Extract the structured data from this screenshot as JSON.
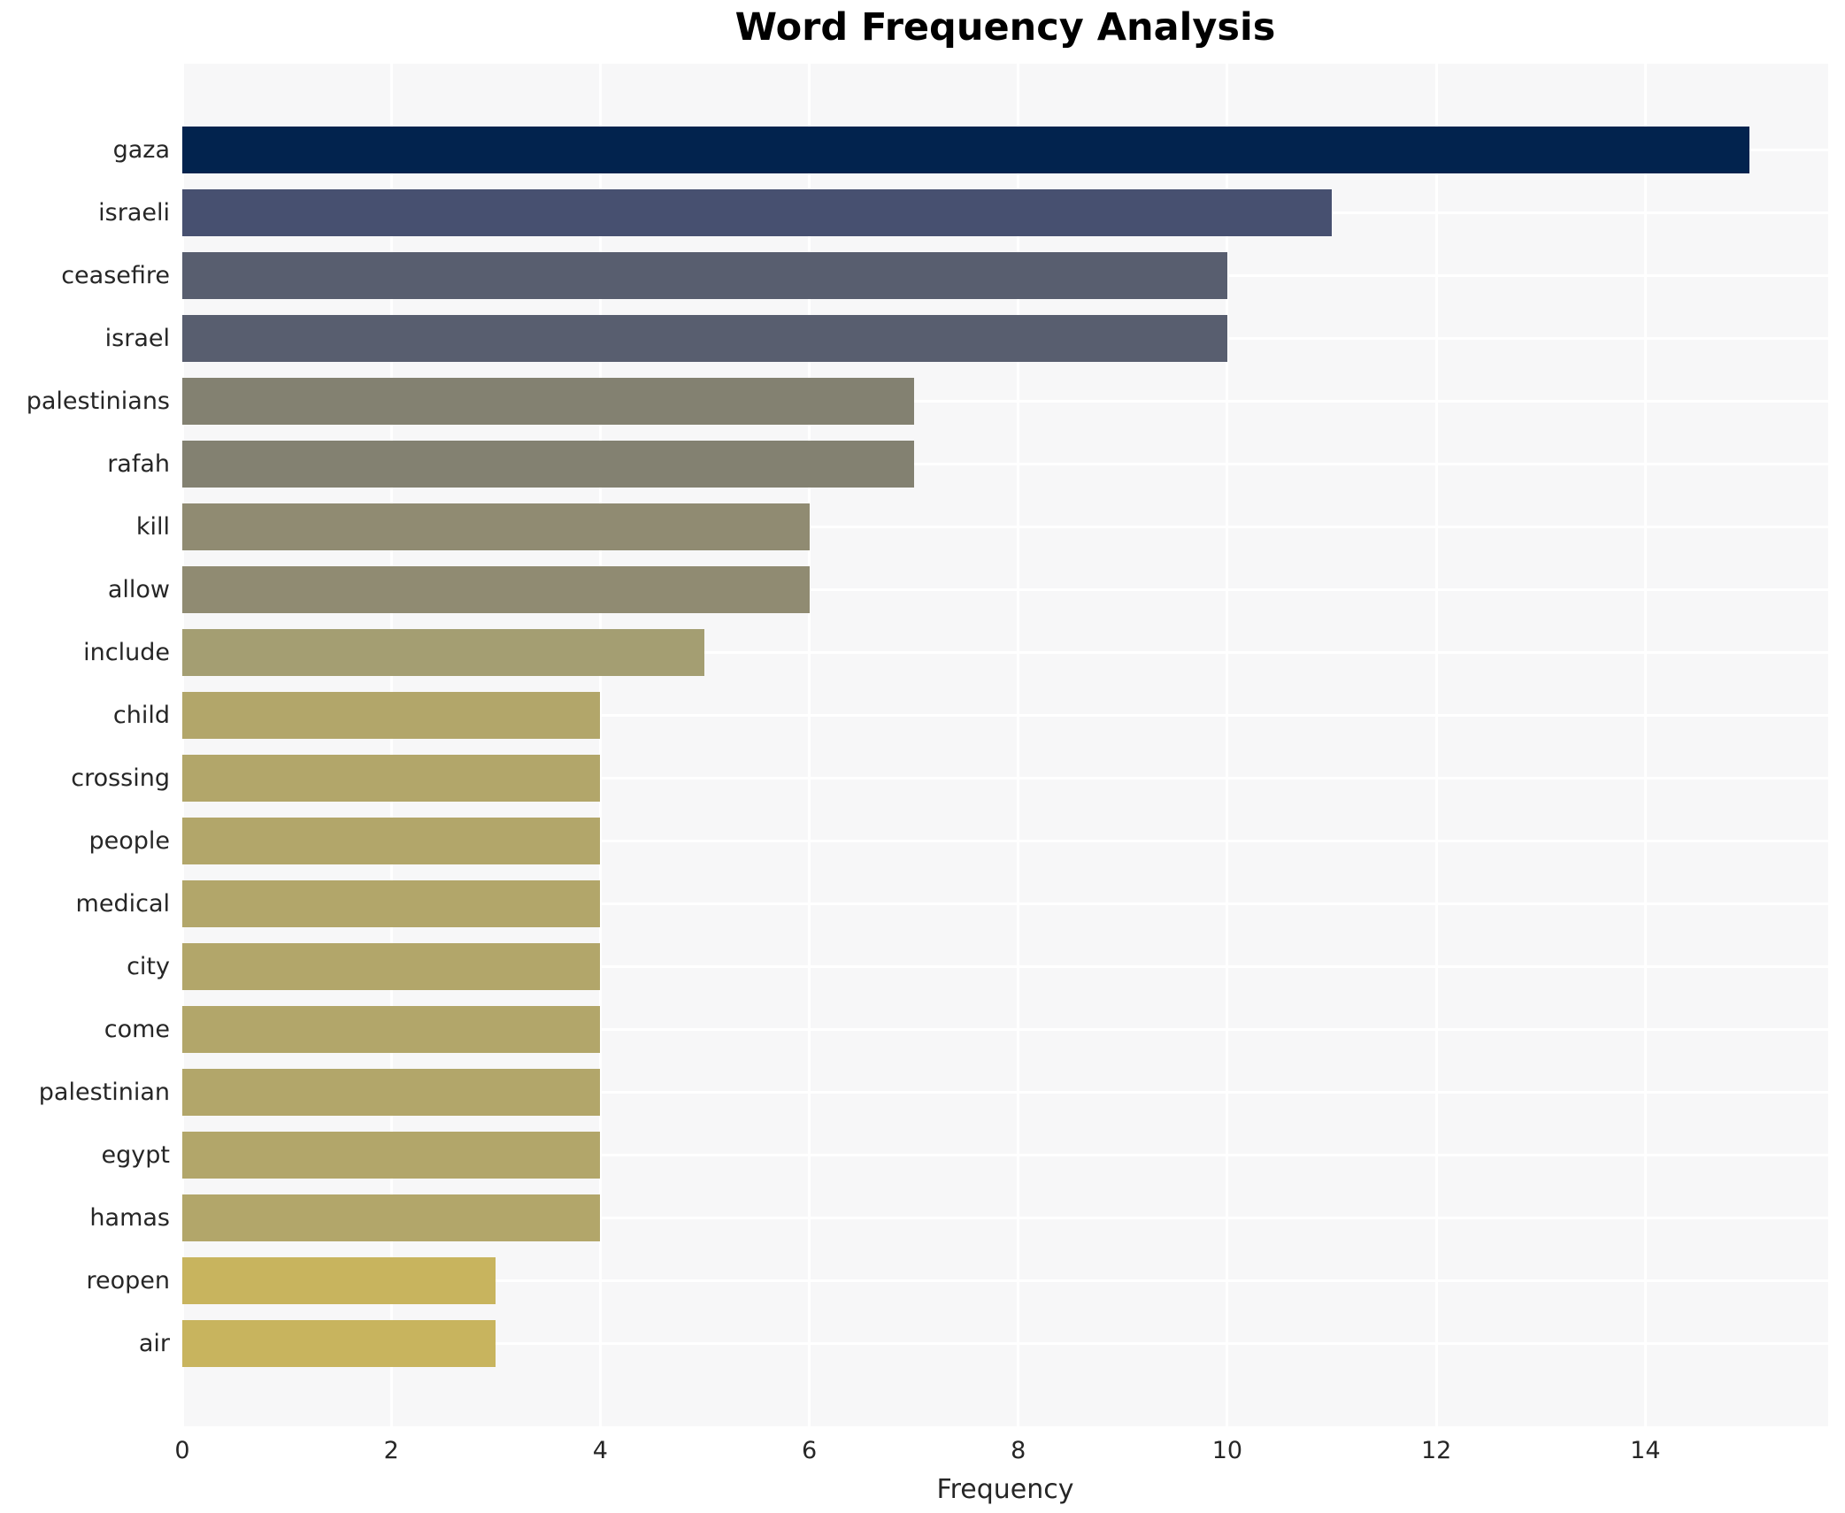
{
  "title": "Word Frequency Analysis",
  "chart_data": {
    "type": "bar",
    "orientation": "horizontal",
    "title": "Word Frequency Analysis",
    "xlabel": "Frequency",
    "ylabel": "",
    "categories": [
      "gaza",
      "israeli",
      "ceasefire",
      "israel",
      "palestinians",
      "rafah",
      "kill",
      "allow",
      "include",
      "child",
      "crossing",
      "people",
      "medical",
      "city",
      "come",
      "palestinian",
      "egypt",
      "hamas",
      "reopen",
      "air"
    ],
    "values": [
      15,
      11,
      10,
      10,
      7,
      7,
      6,
      6,
      5,
      4,
      4,
      4,
      4,
      4,
      4,
      4,
      4,
      4,
      3,
      3
    ],
    "bar_colors": [
      "#02234e",
      "#475070",
      "#585e6f",
      "#585e6f",
      "#838171",
      "#838171",
      "#908b72",
      "#908b72",
      "#a49e72",
      "#b2a66a",
      "#b2a66a",
      "#b2a66a",
      "#b2a66a",
      "#b2a66a",
      "#b2a66a",
      "#b2a66a",
      "#b2a66a",
      "#b2a66a",
      "#c8b45e",
      "#c8b45e"
    ],
    "xticks": [
      0,
      2,
      4,
      6,
      8,
      10,
      12,
      14
    ],
    "xtick_labels": [
      "0",
      "2",
      "4",
      "6",
      "8",
      "10",
      "12",
      "14"
    ],
    "xlim": [
      0,
      15.75
    ],
    "grid": "on",
    "legend": "none",
    "plot_bg_color": "#f7f7f8",
    "grid_color": "#ffffff",
    "text_color": "#262626"
  }
}
